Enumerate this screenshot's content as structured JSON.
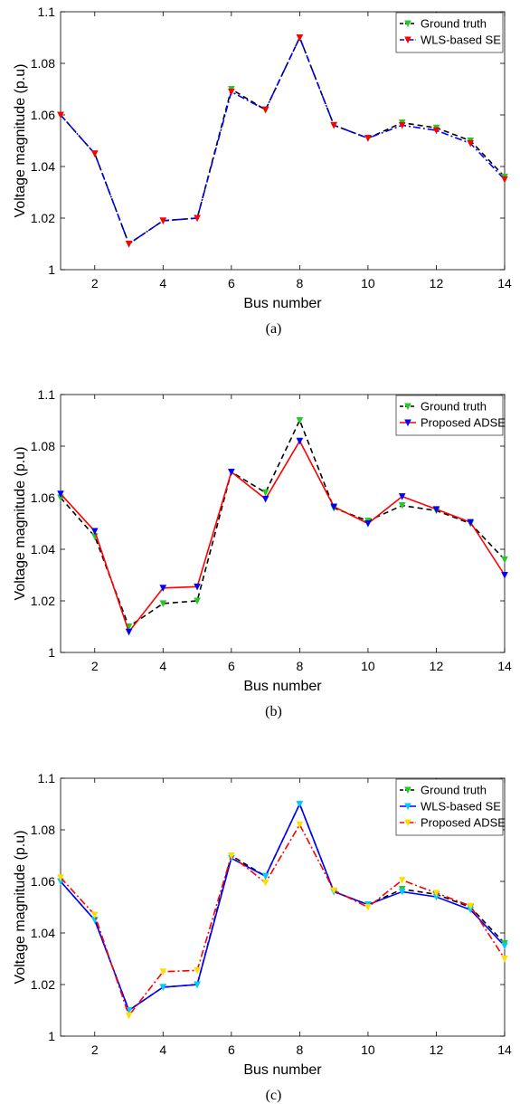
{
  "chart_data": [
    {
      "type": "line",
      "caption": "(a)",
      "xlabel": "Bus number",
      "ylabel": "Voltage magnitude (p.u)",
      "xlim": [
        1,
        14
      ],
      "ylim": [
        1,
        1.1
      ],
      "xticks": [
        "2",
        "4",
        "6",
        "8",
        "10",
        "12",
        "14"
      ],
      "yticks": [
        "1",
        "1.02",
        "1.04",
        "1.06",
        "1.08",
        "1.1"
      ],
      "grid": false,
      "legend_position": "top-right",
      "x": [
        1,
        2,
        3,
        4,
        5,
        6,
        7,
        8,
        9,
        10,
        11,
        12,
        13,
        14
      ],
      "series": [
        {
          "name": "Ground truth",
          "color": "#000000",
          "marker_color": "#22cc22",
          "line_style": "dashed",
          "values": [
            1.06,
            1.045,
            1.01,
            1.019,
            1.02,
            1.07,
            1.062,
            1.09,
            1.056,
            1.051,
            1.057,
            1.055,
            1.05,
            1.036
          ]
        },
        {
          "name": "WLS-based SE",
          "color": "#0000ff",
          "marker_color": "#ff0000",
          "line_style": "dashdot",
          "values": [
            1.06,
            1.045,
            1.01,
            1.019,
            1.02,
            1.069,
            1.062,
            1.09,
            1.056,
            1.051,
            1.056,
            1.054,
            1.049,
            1.035
          ]
        }
      ]
    },
    {
      "type": "line",
      "caption": "(b)",
      "xlabel": "Bus number",
      "ylabel": "Voltage magnitude (p.u)",
      "xlim": [
        1,
        14
      ],
      "ylim": [
        1,
        1.1
      ],
      "xticks": [
        "2",
        "4",
        "6",
        "8",
        "10",
        "12",
        "14"
      ],
      "yticks": [
        "1",
        "1.02",
        "1.04",
        "1.06",
        "1.08",
        "1.1"
      ],
      "grid": false,
      "legend_position": "top-right",
      "x": [
        1,
        2,
        3,
        4,
        5,
        6,
        7,
        8,
        9,
        10,
        11,
        12,
        13,
        14
      ],
      "series": [
        {
          "name": "Ground truth",
          "color": "#000000",
          "marker_color": "#22cc22",
          "line_style": "dashed",
          "values": [
            1.06,
            1.045,
            1.01,
            1.019,
            1.02,
            1.07,
            1.062,
            1.09,
            1.056,
            1.051,
            1.057,
            1.055,
            1.05,
            1.036
          ]
        },
        {
          "name": "Proposed ADSE",
          "color": "#ff0000",
          "marker_color": "#0000ff",
          "line_style": "solid",
          "values": [
            1.0615,
            1.047,
            1.008,
            1.025,
            1.0255,
            1.07,
            1.0595,
            1.082,
            1.0565,
            1.05,
            1.0605,
            1.0555,
            1.0505,
            1.03
          ]
        }
      ]
    },
    {
      "type": "line",
      "caption": "(c)",
      "xlabel": "Bus number",
      "ylabel": "Voltage magnitude (p.u)",
      "xlim": [
        1,
        14
      ],
      "ylim": [
        1,
        1.1
      ],
      "xticks": [
        "2",
        "4",
        "6",
        "8",
        "10",
        "12",
        "14"
      ],
      "yticks": [
        "1",
        "1.02",
        "1.04",
        "1.06",
        "1.08",
        "1.1"
      ],
      "grid": false,
      "legend_position": "top-right",
      "x": [
        1,
        2,
        3,
        4,
        5,
        6,
        7,
        8,
        9,
        10,
        11,
        12,
        13,
        14
      ],
      "series": [
        {
          "name": "Ground truth",
          "color": "#000000",
          "marker_color": "#22cc22",
          "line_style": "dashed",
          "values": [
            1.06,
            1.045,
            1.01,
            1.019,
            1.02,
            1.07,
            1.062,
            1.09,
            1.056,
            1.051,
            1.057,
            1.055,
            1.05,
            1.036
          ]
        },
        {
          "name": "WLS-based SE",
          "color": "#0000ff",
          "marker_color": "#00ccff",
          "line_style": "solid",
          "values": [
            1.06,
            1.045,
            1.01,
            1.019,
            1.02,
            1.069,
            1.062,
            1.09,
            1.056,
            1.051,
            1.056,
            1.054,
            1.049,
            1.035
          ]
        },
        {
          "name": "Proposed ADSE",
          "color": "#ff0000",
          "marker_color": "#ffdd00",
          "line_style": "dashdot",
          "values": [
            1.0615,
            1.047,
            1.008,
            1.025,
            1.0255,
            1.07,
            1.0595,
            1.082,
            1.0565,
            1.05,
            1.0605,
            1.0555,
            1.0505,
            1.03
          ]
        }
      ]
    }
  ]
}
